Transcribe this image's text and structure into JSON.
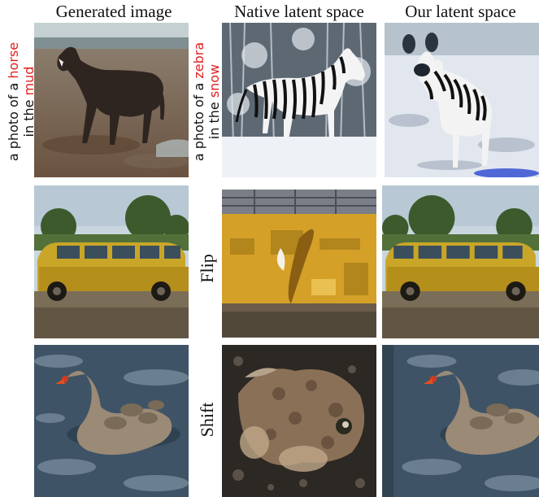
{
  "headers": {
    "generated": "Generated image",
    "native": "Native latent space",
    "ours": "Our latent space"
  },
  "rows": [
    {
      "prompt": {
        "generated": {
          "line1_prefix": "a photo of a ",
          "line1_word": "horse",
          "line2_prefix": "in the ",
          "line2_word": "mud"
        },
        "edited": {
          "line1_prefix": "a photo of a ",
          "line1_word": "zebra",
          "line2_prefix": "in the ",
          "line2_word": "snow"
        }
      }
    },
    {
      "operation": "Flip"
    },
    {
      "operation": "Shift"
    }
  ],
  "colors": {
    "highlight": "#e02020",
    "text": "#111111"
  }
}
